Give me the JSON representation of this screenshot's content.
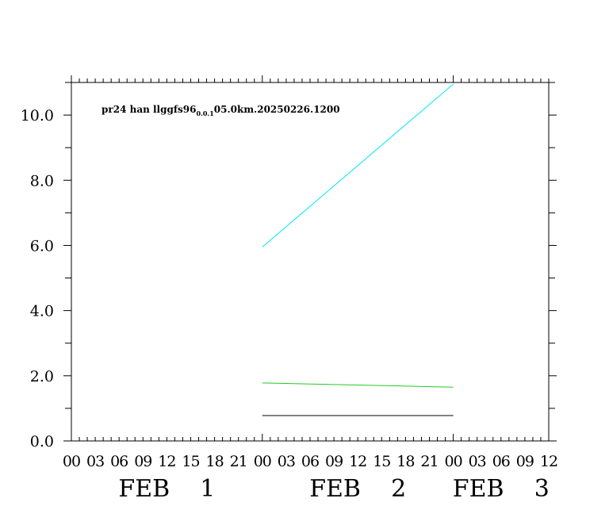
{
  "chart_data": {
    "type": "line",
    "annotation": {
      "prefix": "pr24  han  llggfs96",
      "subscript": "0.0.1",
      "suffix": "05.0km.20250226.1200"
    },
    "xlim": [
      0,
      60
    ],
    "ylim": [
      0,
      11
    ],
    "y_ticks": [
      0,
      2,
      4,
      6,
      8,
      10
    ],
    "y_tick_labels": [
      "0.0",
      "2.0",
      "4.0",
      "6.0",
      "8.0",
      "10.0"
    ],
    "x_tick_labels": [
      "00",
      "03",
      "06",
      "09",
      "12",
      "15",
      "18",
      "21",
      "00",
      "03",
      "06",
      "09",
      "12",
      "15",
      "18",
      "21",
      "00",
      "03",
      "06",
      "09",
      "12"
    ],
    "x_tick_hours": [
      0,
      3,
      6,
      9,
      12,
      15,
      18,
      21,
      24,
      27,
      30,
      33,
      36,
      39,
      42,
      45,
      48,
      51,
      54,
      57,
      60
    ],
    "date_labels": [
      {
        "text": "FEB    1",
        "hour": 12
      },
      {
        "text": "FEB    2",
        "hour": 36
      },
      {
        "text": "FEB    3",
        "hour": 54
      }
    ],
    "series": [
      {
        "color": "#00e5ff",
        "x": [
          24,
          48
        ],
        "y": [
          5.95,
          10.95
        ]
      },
      {
        "color": "#22cc22",
        "x": [
          24,
          48
        ],
        "y": [
          1.78,
          1.65
        ]
      },
      {
        "color": "#000000",
        "x": [
          24,
          48
        ],
        "y": [
          0.78,
          0.78
        ]
      }
    ]
  }
}
